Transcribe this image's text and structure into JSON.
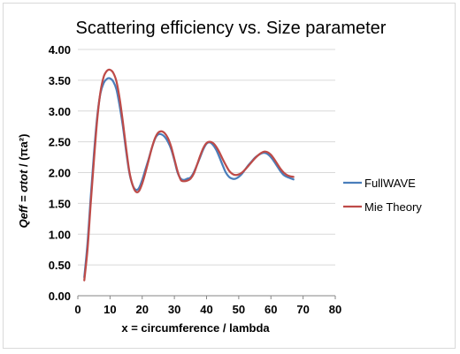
{
  "chart_data": {
    "type": "line",
    "title": "Scattering efficiency vs. Size parameter",
    "xlabel": "x = circumference / lambda",
    "ylabel": "Qeff = σtot / (πa²)",
    "ylabel_parts": {
      "italic": "Qeff = σtot",
      "rest": " / (πa²)"
    },
    "xlim": [
      0,
      80
    ],
    "ylim": [
      0,
      4
    ],
    "x_ticks": [
      "0",
      "10",
      "20",
      "30",
      "40",
      "50",
      "60",
      "70",
      "80"
    ],
    "y_ticks": [
      "0.00",
      "0.50",
      "1.00",
      "1.50",
      "2.00",
      "2.50",
      "3.00",
      "3.50",
      "4.00"
    ],
    "grid": "horizontal",
    "legend_position": "right",
    "series": [
      {
        "name": "FullWAVE",
        "color": "#4a7ebb",
        "x": [
          2,
          3,
          4,
          5,
          6,
          7,
          8,
          9,
          10,
          11,
          12,
          13,
          14,
          15,
          16,
          17,
          18,
          19,
          20,
          21,
          22,
          23,
          24,
          25,
          26,
          27,
          28,
          29,
          30,
          31,
          32,
          33,
          34,
          35,
          36,
          37,
          38,
          39,
          40,
          41,
          42,
          43,
          44,
          45,
          46,
          47,
          48,
          49,
          50,
          51,
          52,
          53,
          54,
          55,
          56,
          57,
          58,
          59,
          60,
          61,
          62,
          63,
          64,
          65,
          66,
          67
        ],
        "y": [
          0.3,
          0.85,
          1.6,
          2.3,
          2.9,
          3.28,
          3.45,
          3.52,
          3.53,
          3.48,
          3.35,
          3.08,
          2.75,
          2.35,
          2.0,
          1.8,
          1.72,
          1.75,
          1.88,
          2.05,
          2.22,
          2.4,
          2.55,
          2.62,
          2.62,
          2.58,
          2.5,
          2.38,
          2.2,
          2.0,
          1.9,
          1.88,
          1.9,
          1.92,
          2.0,
          2.12,
          2.25,
          2.38,
          2.47,
          2.49,
          2.45,
          2.37,
          2.25,
          2.12,
          2.0,
          1.93,
          1.9,
          1.9,
          1.93,
          1.98,
          2.05,
          2.12,
          2.18,
          2.24,
          2.28,
          2.31,
          2.32,
          2.3,
          2.25,
          2.18,
          2.1,
          2.02,
          1.96,
          1.93,
          1.91,
          1.89
        ]
      },
      {
        "name": "Mie Theory",
        "color": "#be4b48",
        "x": [
          2,
          3,
          4,
          5,
          6,
          7,
          8,
          9,
          10,
          11,
          12,
          13,
          14,
          15,
          16,
          17,
          18,
          19,
          20,
          21,
          22,
          23,
          24,
          25,
          26,
          27,
          28,
          29,
          30,
          31,
          32,
          33,
          34,
          35,
          36,
          37,
          38,
          39,
          40,
          41,
          42,
          43,
          44,
          45,
          46,
          47,
          48,
          49,
          50,
          51,
          52,
          53,
          54,
          55,
          56,
          57,
          58,
          59,
          60,
          61,
          62,
          63,
          64,
          65,
          66,
          67
        ],
        "y": [
          0.25,
          0.75,
          1.5,
          2.2,
          2.85,
          3.3,
          3.55,
          3.65,
          3.67,
          3.62,
          3.48,
          3.2,
          2.82,
          2.4,
          2.02,
          1.8,
          1.69,
          1.7,
          1.82,
          2.0,
          2.2,
          2.4,
          2.56,
          2.65,
          2.67,
          2.64,
          2.56,
          2.42,
          2.22,
          2.02,
          1.88,
          1.86,
          1.87,
          1.9,
          1.98,
          2.12,
          2.27,
          2.4,
          2.48,
          2.5,
          2.48,
          2.42,
          2.33,
          2.22,
          2.12,
          2.03,
          1.98,
          1.96,
          1.97,
          2.0,
          2.05,
          2.11,
          2.17,
          2.23,
          2.28,
          2.32,
          2.34,
          2.33,
          2.29,
          2.22,
          2.14,
          2.06,
          2.0,
          1.96,
          1.94,
          1.93
        ]
      }
    ]
  }
}
